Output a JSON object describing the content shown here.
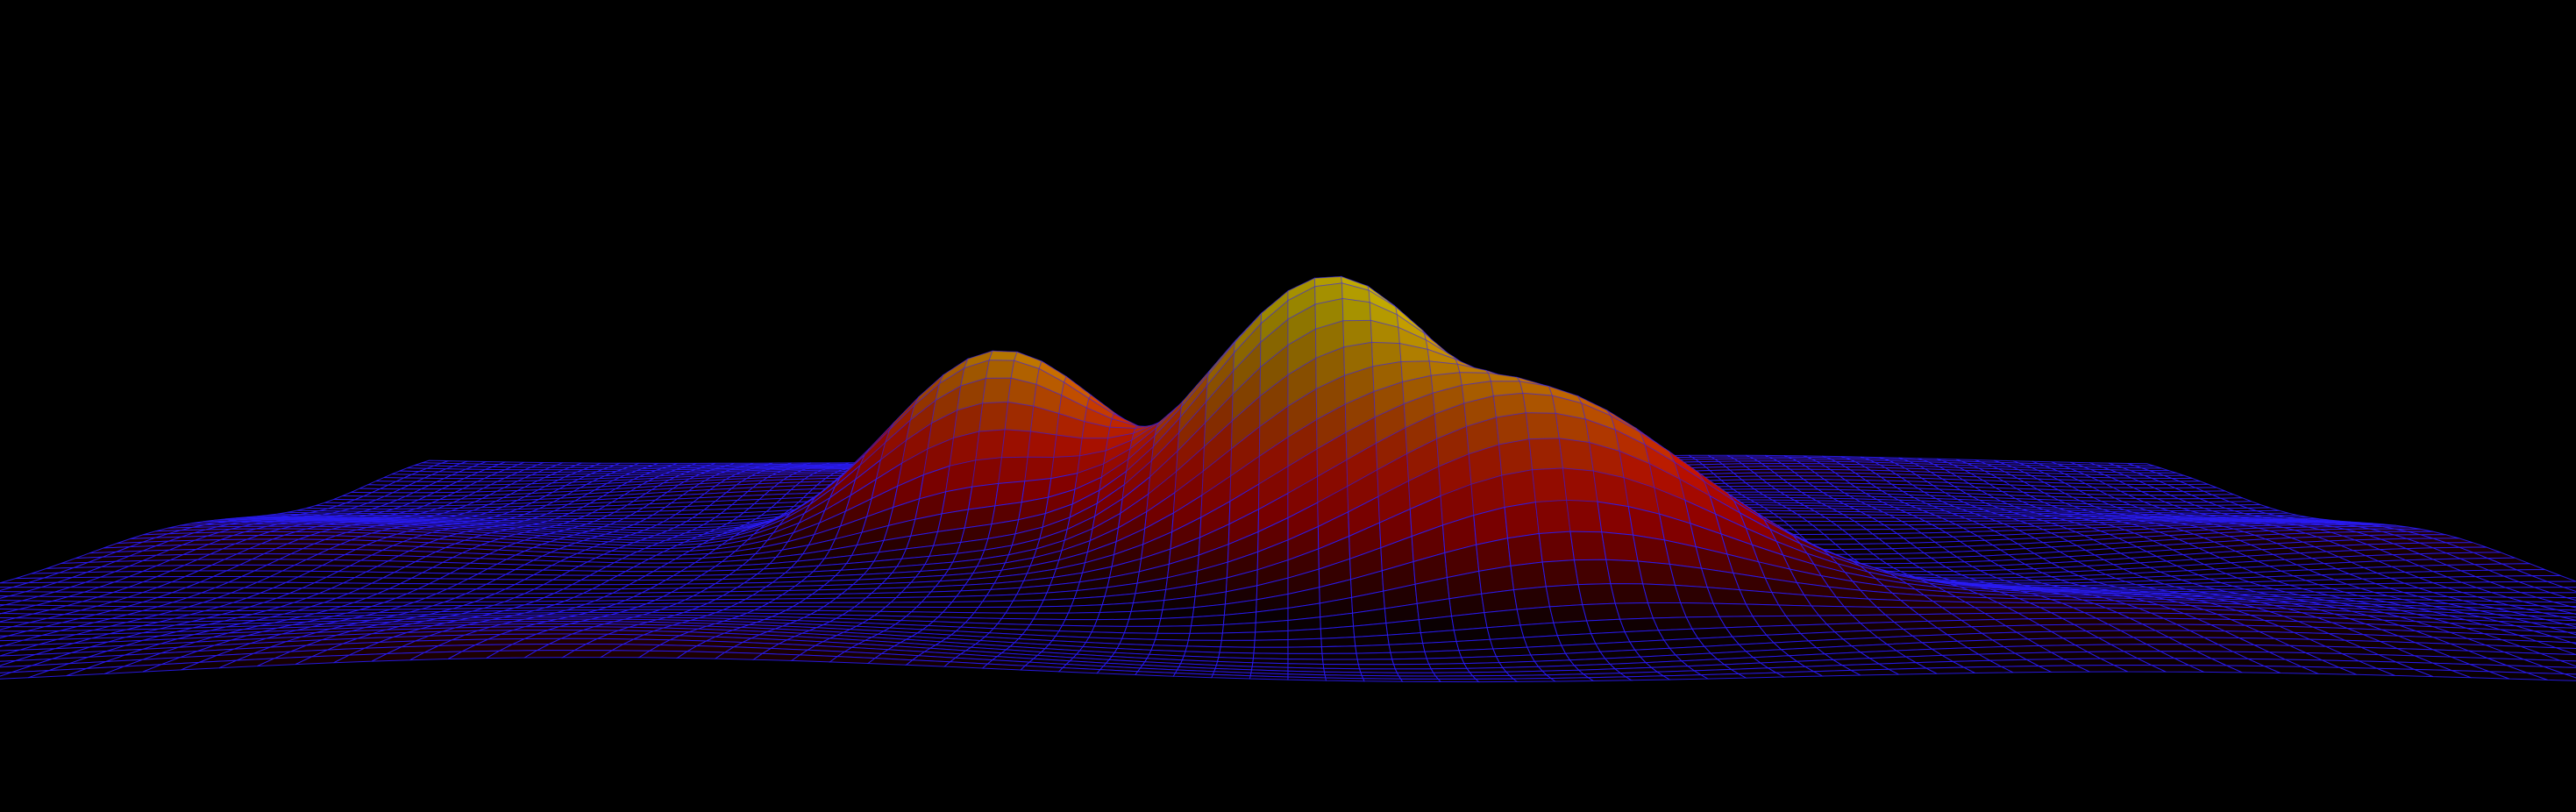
{
  "scene": {
    "background_color": "#000000",
    "wireframe_color": "#2a1cff",
    "colormap": [
      "#1a0008",
      "#6e0000",
      "#c80000",
      "#ff1a00",
      "#ff6a00",
      "#ffb000",
      "#ffe000"
    ],
    "peaks": [
      {
        "name": "left-peak",
        "relative_height": 0.78
      },
      {
        "name": "center-peak",
        "relative_height": 1.0
      },
      {
        "name": "front-peak",
        "relative_height": 0.6
      }
    ]
  }
}
